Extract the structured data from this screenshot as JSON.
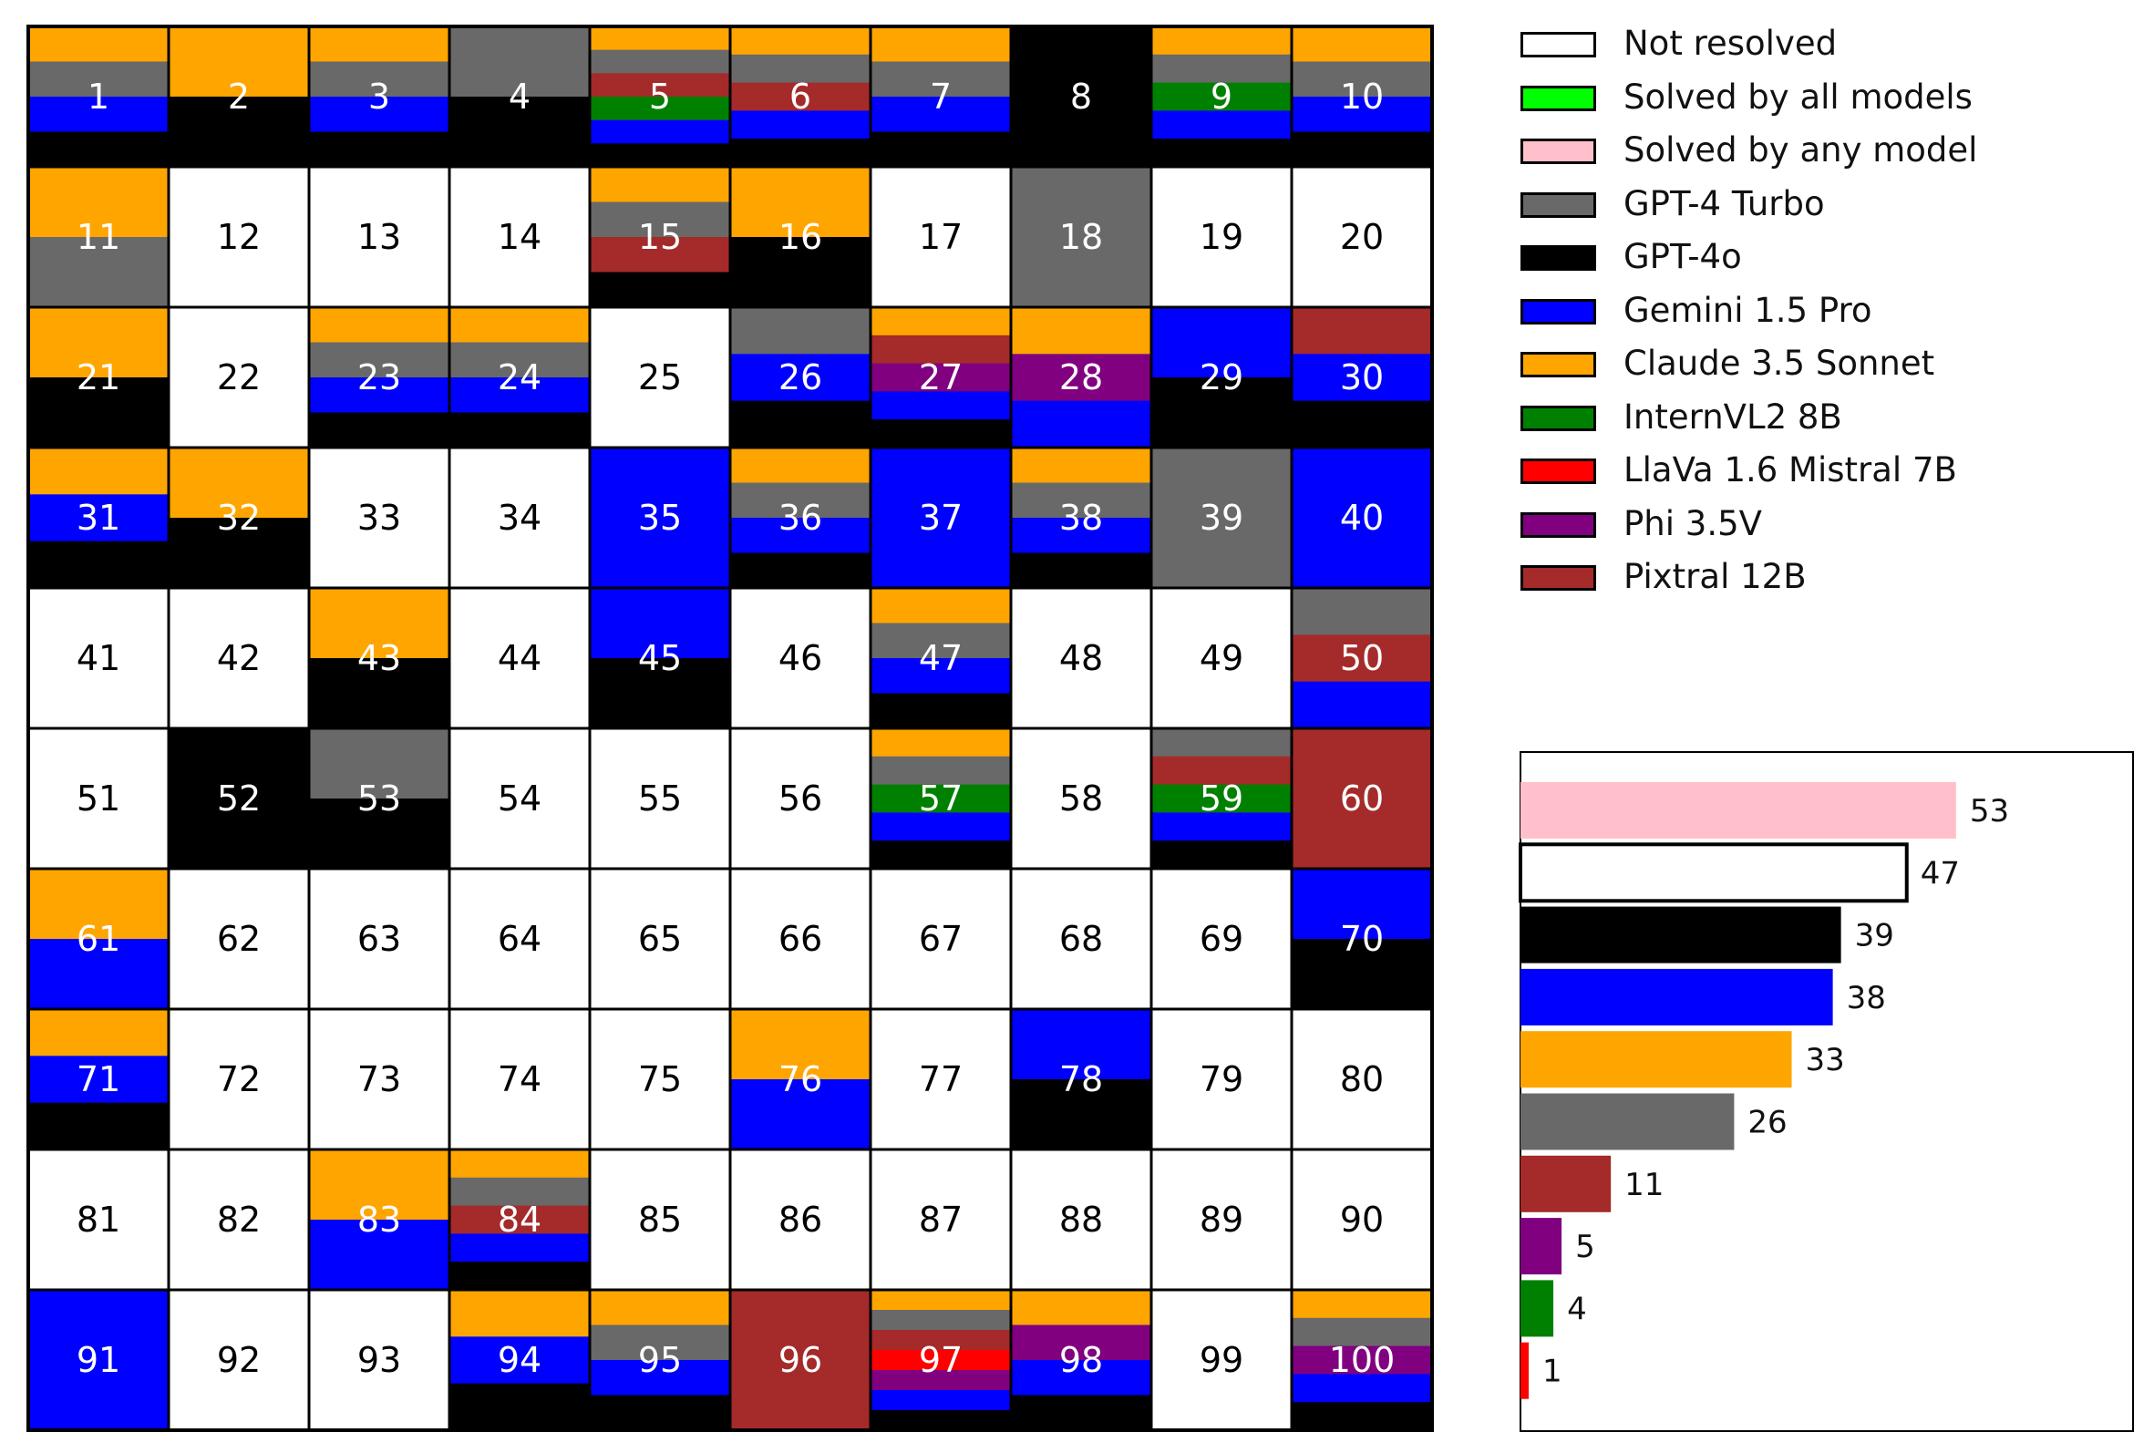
{
  "chart_data": [
    {
      "type": "heatmap",
      "title": "",
      "legend": [
        {
          "key": "not_resolved",
          "label": "Not resolved",
          "color": "#ffffff"
        },
        {
          "key": "solved_all",
          "label": "Solved by all models",
          "color": "#00ff00"
        },
        {
          "key": "solved_any",
          "label": "Solved by any model",
          "color": "#ffc0cb"
        },
        {
          "key": "gpt4t",
          "label": "GPT-4 Turbo",
          "color": "#696969"
        },
        {
          "key": "gpt4o",
          "label": "GPT-4o",
          "color": "#000000"
        },
        {
          "key": "gemini",
          "label": "Gemini 1.5 Pro",
          "color": "#0000ff"
        },
        {
          "key": "claude",
          "label": "Claude 3.5 Sonnet",
          "color": "#ffa500"
        },
        {
          "key": "internvl",
          "label": "InternVL2 8B",
          "color": "#008000"
        },
        {
          "key": "llava",
          "label": "LlaVa 1.6 Mistral 7B",
          "color": "#ff0000"
        },
        {
          "key": "phi",
          "label": "Phi 3.5V",
          "color": "#800080"
        },
        {
          "key": "pixtral",
          "label": "Pixtral 12B",
          "color": "#a52a2a"
        }
      ],
      "legend_position": "top-right",
      "cells": [
        {
          "id": "1",
          "solved_by": [
            "claude",
            "gpt4t",
            "gemini",
            "gpt4o"
          ]
        },
        {
          "id": "2",
          "solved_by": [
            "claude",
            "gpt4o"
          ]
        },
        {
          "id": "3",
          "solved_by": [
            "claude",
            "gpt4t",
            "gemini",
            "gpt4o"
          ]
        },
        {
          "id": "4",
          "solved_by": [
            "gpt4t",
            "gpt4o"
          ]
        },
        {
          "id": "5",
          "solved_by": [
            "claude",
            "gpt4t",
            "pixtral",
            "internvl",
            "gemini",
            "gpt4o"
          ]
        },
        {
          "id": "6",
          "solved_by": [
            "claude",
            "gpt4t",
            "pixtral",
            "gemini",
            "gpt4o"
          ]
        },
        {
          "id": "7",
          "solved_by": [
            "claude",
            "gpt4t",
            "gemini",
            "gpt4o"
          ]
        },
        {
          "id": "8",
          "solved_by": [
            "gpt4o"
          ]
        },
        {
          "id": "9",
          "solved_by": [
            "claude",
            "gpt4t",
            "internvl",
            "gemini",
            "gpt4o"
          ]
        },
        {
          "id": "10",
          "solved_by": [
            "claude",
            "gpt4t",
            "gemini",
            "gpt4o"
          ]
        },
        {
          "id": "11",
          "solved_by": [
            "claude",
            "gpt4t"
          ]
        },
        {
          "id": "12",
          "solved_by": []
        },
        {
          "id": "13",
          "solved_by": []
        },
        {
          "id": "14",
          "solved_by": []
        },
        {
          "id": "15",
          "solved_by": [
            "claude",
            "gpt4t",
            "pixtral",
            "gpt4o"
          ]
        },
        {
          "id": "16",
          "solved_by": [
            "claude",
            "gpt4o"
          ]
        },
        {
          "id": "17",
          "solved_by": []
        },
        {
          "id": "18",
          "solved_by": [
            "gpt4t"
          ]
        },
        {
          "id": "19",
          "solved_by": []
        },
        {
          "id": "20",
          "solved_by": []
        },
        {
          "id": "21",
          "solved_by": [
            "claude",
            "gpt4o"
          ]
        },
        {
          "id": "22",
          "solved_by": []
        },
        {
          "id": "23",
          "solved_by": [
            "claude",
            "gpt4t",
            "gemini",
            "gpt4o"
          ]
        },
        {
          "id": "24",
          "solved_by": [
            "claude",
            "gpt4t",
            "gemini",
            "gpt4o"
          ]
        },
        {
          "id": "25",
          "solved_by": []
        },
        {
          "id": "26",
          "solved_by": [
            "gpt4t",
            "gemini",
            "gpt4o"
          ]
        },
        {
          "id": "27",
          "solved_by": [
            "claude",
            "pixtral",
            "phi",
            "gemini",
            "gpt4o"
          ]
        },
        {
          "id": "28",
          "solved_by": [
            "claude",
            "phi",
            "gemini"
          ]
        },
        {
          "id": "29",
          "solved_by": [
            "gemini",
            "gpt4o"
          ]
        },
        {
          "id": "30",
          "solved_by": [
            "pixtral",
            "gemini",
            "gpt4o"
          ]
        },
        {
          "id": "31",
          "solved_by": [
            "claude",
            "gemini",
            "gpt4o"
          ]
        },
        {
          "id": "32",
          "solved_by": [
            "claude",
            "gpt4o"
          ]
        },
        {
          "id": "33",
          "solved_by": []
        },
        {
          "id": "34",
          "solved_by": []
        },
        {
          "id": "35",
          "solved_by": [
            "gemini"
          ]
        },
        {
          "id": "36",
          "solved_by": [
            "claude",
            "gpt4t",
            "gemini",
            "gpt4o"
          ]
        },
        {
          "id": "37",
          "solved_by": [
            "gemini"
          ]
        },
        {
          "id": "38",
          "solved_by": [
            "claude",
            "gpt4t",
            "gemini",
            "gpt4o"
          ]
        },
        {
          "id": "39",
          "solved_by": [
            "gpt4t"
          ]
        },
        {
          "id": "40",
          "solved_by": [
            "gemini"
          ]
        },
        {
          "id": "41",
          "solved_by": []
        },
        {
          "id": "42",
          "solved_by": []
        },
        {
          "id": "43",
          "solved_by": [
            "claude",
            "gpt4o"
          ]
        },
        {
          "id": "44",
          "solved_by": []
        },
        {
          "id": "45",
          "solved_by": [
            "gemini",
            "gpt4o"
          ]
        },
        {
          "id": "46",
          "solved_by": []
        },
        {
          "id": "47",
          "solved_by": [
            "claude",
            "gpt4t",
            "gemini",
            "gpt4o"
          ]
        },
        {
          "id": "48",
          "solved_by": []
        },
        {
          "id": "49",
          "solved_by": []
        },
        {
          "id": "50",
          "solved_by": [
            "gpt4t",
            "pixtral",
            "gemini"
          ]
        },
        {
          "id": "51",
          "solved_by": []
        },
        {
          "id": "52",
          "solved_by": [
            "gpt4o"
          ]
        },
        {
          "id": "53",
          "solved_by": [
            "gpt4t",
            "gpt4o"
          ]
        },
        {
          "id": "54",
          "solved_by": []
        },
        {
          "id": "55",
          "solved_by": []
        },
        {
          "id": "56",
          "solved_by": []
        },
        {
          "id": "57",
          "solved_by": [
            "claude",
            "gpt4t",
            "internvl",
            "gemini",
            "gpt4o"
          ]
        },
        {
          "id": "58",
          "solved_by": []
        },
        {
          "id": "59",
          "solved_by": [
            "gpt4t",
            "pixtral",
            "internvl",
            "gemini",
            "gpt4o"
          ]
        },
        {
          "id": "60",
          "solved_by": [
            "pixtral"
          ]
        },
        {
          "id": "61",
          "solved_by": [
            "claude",
            "gemini"
          ]
        },
        {
          "id": "62",
          "solved_by": []
        },
        {
          "id": "63",
          "solved_by": []
        },
        {
          "id": "64",
          "solved_by": []
        },
        {
          "id": "65",
          "solved_by": []
        },
        {
          "id": "66",
          "solved_by": []
        },
        {
          "id": "67",
          "solved_by": []
        },
        {
          "id": "68",
          "solved_by": []
        },
        {
          "id": "69",
          "solved_by": []
        },
        {
          "id": "70",
          "solved_by": [
            "gemini",
            "gpt4o"
          ]
        },
        {
          "id": "71",
          "solved_by": [
            "claude",
            "gemini",
            "gpt4o"
          ]
        },
        {
          "id": "72",
          "solved_by": []
        },
        {
          "id": "73",
          "solved_by": []
        },
        {
          "id": "74",
          "solved_by": []
        },
        {
          "id": "75",
          "solved_by": []
        },
        {
          "id": "76",
          "solved_by": [
            "claude",
            "gemini"
          ]
        },
        {
          "id": "77",
          "solved_by": []
        },
        {
          "id": "78",
          "solved_by": [
            "gemini",
            "gpt4o"
          ]
        },
        {
          "id": "79",
          "solved_by": []
        },
        {
          "id": "80",
          "solved_by": []
        },
        {
          "id": "81",
          "solved_by": []
        },
        {
          "id": "82",
          "solved_by": []
        },
        {
          "id": "83",
          "solved_by": [
            "claude",
            "gemini"
          ]
        },
        {
          "id": "84",
          "solved_by": [
            "claude",
            "gpt4t",
            "pixtral",
            "gemini",
            "gpt4o"
          ]
        },
        {
          "id": "85",
          "solved_by": []
        },
        {
          "id": "86",
          "solved_by": []
        },
        {
          "id": "87",
          "solved_by": []
        },
        {
          "id": "88",
          "solved_by": []
        },
        {
          "id": "89",
          "solved_by": []
        },
        {
          "id": "90",
          "solved_by": []
        },
        {
          "id": "91",
          "solved_by": [
            "gemini"
          ]
        },
        {
          "id": "92",
          "solved_by": []
        },
        {
          "id": "93",
          "solved_by": []
        },
        {
          "id": "94",
          "solved_by": [
            "claude",
            "gemini",
            "gpt4o"
          ]
        },
        {
          "id": "95",
          "solved_by": [
            "claude",
            "gpt4t",
            "gemini",
            "gpt4o"
          ]
        },
        {
          "id": "96",
          "solved_by": [
            "pixtral"
          ]
        },
        {
          "id": "97",
          "solved_by": [
            "claude",
            "gpt4t",
            "pixtral",
            "llava",
            "phi",
            "gemini",
            "gpt4o"
          ]
        },
        {
          "id": "98",
          "solved_by": [
            "claude",
            "phi",
            "gemini",
            "gpt4o"
          ]
        },
        {
          "id": "99",
          "solved_by": []
        },
        {
          "id": "100",
          "solved_by": [
            "claude",
            "gpt4t",
            "phi",
            "gemini",
            "gpt4o"
          ]
        }
      ]
    },
    {
      "type": "bar",
      "orientation": "horizontal",
      "title": "",
      "xlabel": "",
      "ylabel": "",
      "categories": [
        "Solved by any model",
        "Not resolved",
        "GPT-4o",
        "Gemini 1.5 Pro",
        "Claude 3.5 Sonnet",
        "GPT-4 Turbo",
        "Pixtral 12B",
        "Phi 3.5V",
        "InternVL2 8B",
        "LlaVa 1.6 Mistral 7B"
      ],
      "values": [
        53,
        47,
        39,
        38,
        33,
        26,
        11,
        5,
        4,
        1
      ],
      "colors": [
        "#ffc0cb",
        "#ffffff",
        "#000000",
        "#0000ff",
        "#ffa500",
        "#696969",
        "#a52a2a",
        "#800080",
        "#008000",
        "#ff0000"
      ],
      "xlim": [
        0,
        63
      ],
      "value_labels": [
        "53",
        "47",
        "39",
        "38",
        "33",
        "26",
        "11",
        "5",
        "4",
        "1"
      ]
    }
  ]
}
